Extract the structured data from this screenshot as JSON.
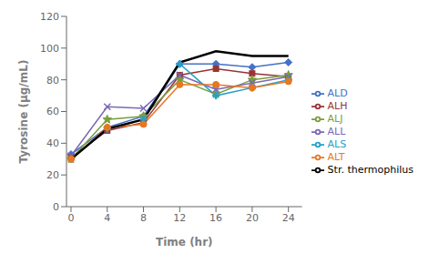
{
  "chart_data": {
    "type": "line",
    "x": [
      0,
      4,
      8,
      12,
      16,
      20,
      24
    ],
    "series": [
      {
        "name": "ALD",
        "color": "#4472C4",
        "marker": "diamond",
        "values": [
          33,
          50,
          57,
          90,
          90,
          88,
          91
        ]
      },
      {
        "name": "ALH",
        "color": "#993333",
        "marker": "square",
        "values": [
          31,
          48,
          53,
          83,
          87,
          84,
          82
        ]
      },
      {
        "name": "ALJ",
        "color": "#7B9E3E",
        "marker": "star",
        "values": [
          30,
          55,
          57,
          80,
          71,
          80,
          83
        ]
      },
      {
        "name": "ALL",
        "color": "#7B68B5",
        "marker": "x",
        "values": [
          32,
          63,
          62,
          83,
          74,
          78,
          82
        ]
      },
      {
        "name": "ALS",
        "color": "#23A0C8",
        "marker": "plus",
        "values": [
          30,
          49,
          55,
          90,
          70,
          75,
          80
        ]
      },
      {
        "name": "ALT",
        "color": "#E87722",
        "marker": "circle",
        "values": [
          30,
          50,
          52,
          77,
          77,
          75,
          79
        ]
      },
      {
        "name": "Str. thermophilus",
        "color": "#000000",
        "marker": "none",
        "values": [
          30,
          49,
          55,
          91,
          98,
          95,
          95
        ]
      }
    ],
    "x_label": "Time (hr)",
    "y_label": "Tyrosine (μg/mL)",
    "xlim": [
      -0.5,
      25.5
    ],
    "xticks": [
      0,
      4,
      8,
      12,
      16,
      20,
      24
    ],
    "ylim": [
      0,
      120
    ],
    "yticks": [
      0,
      20,
      40,
      60,
      80,
      100,
      120
    ],
    "grid": false,
    "legend": "right"
  }
}
